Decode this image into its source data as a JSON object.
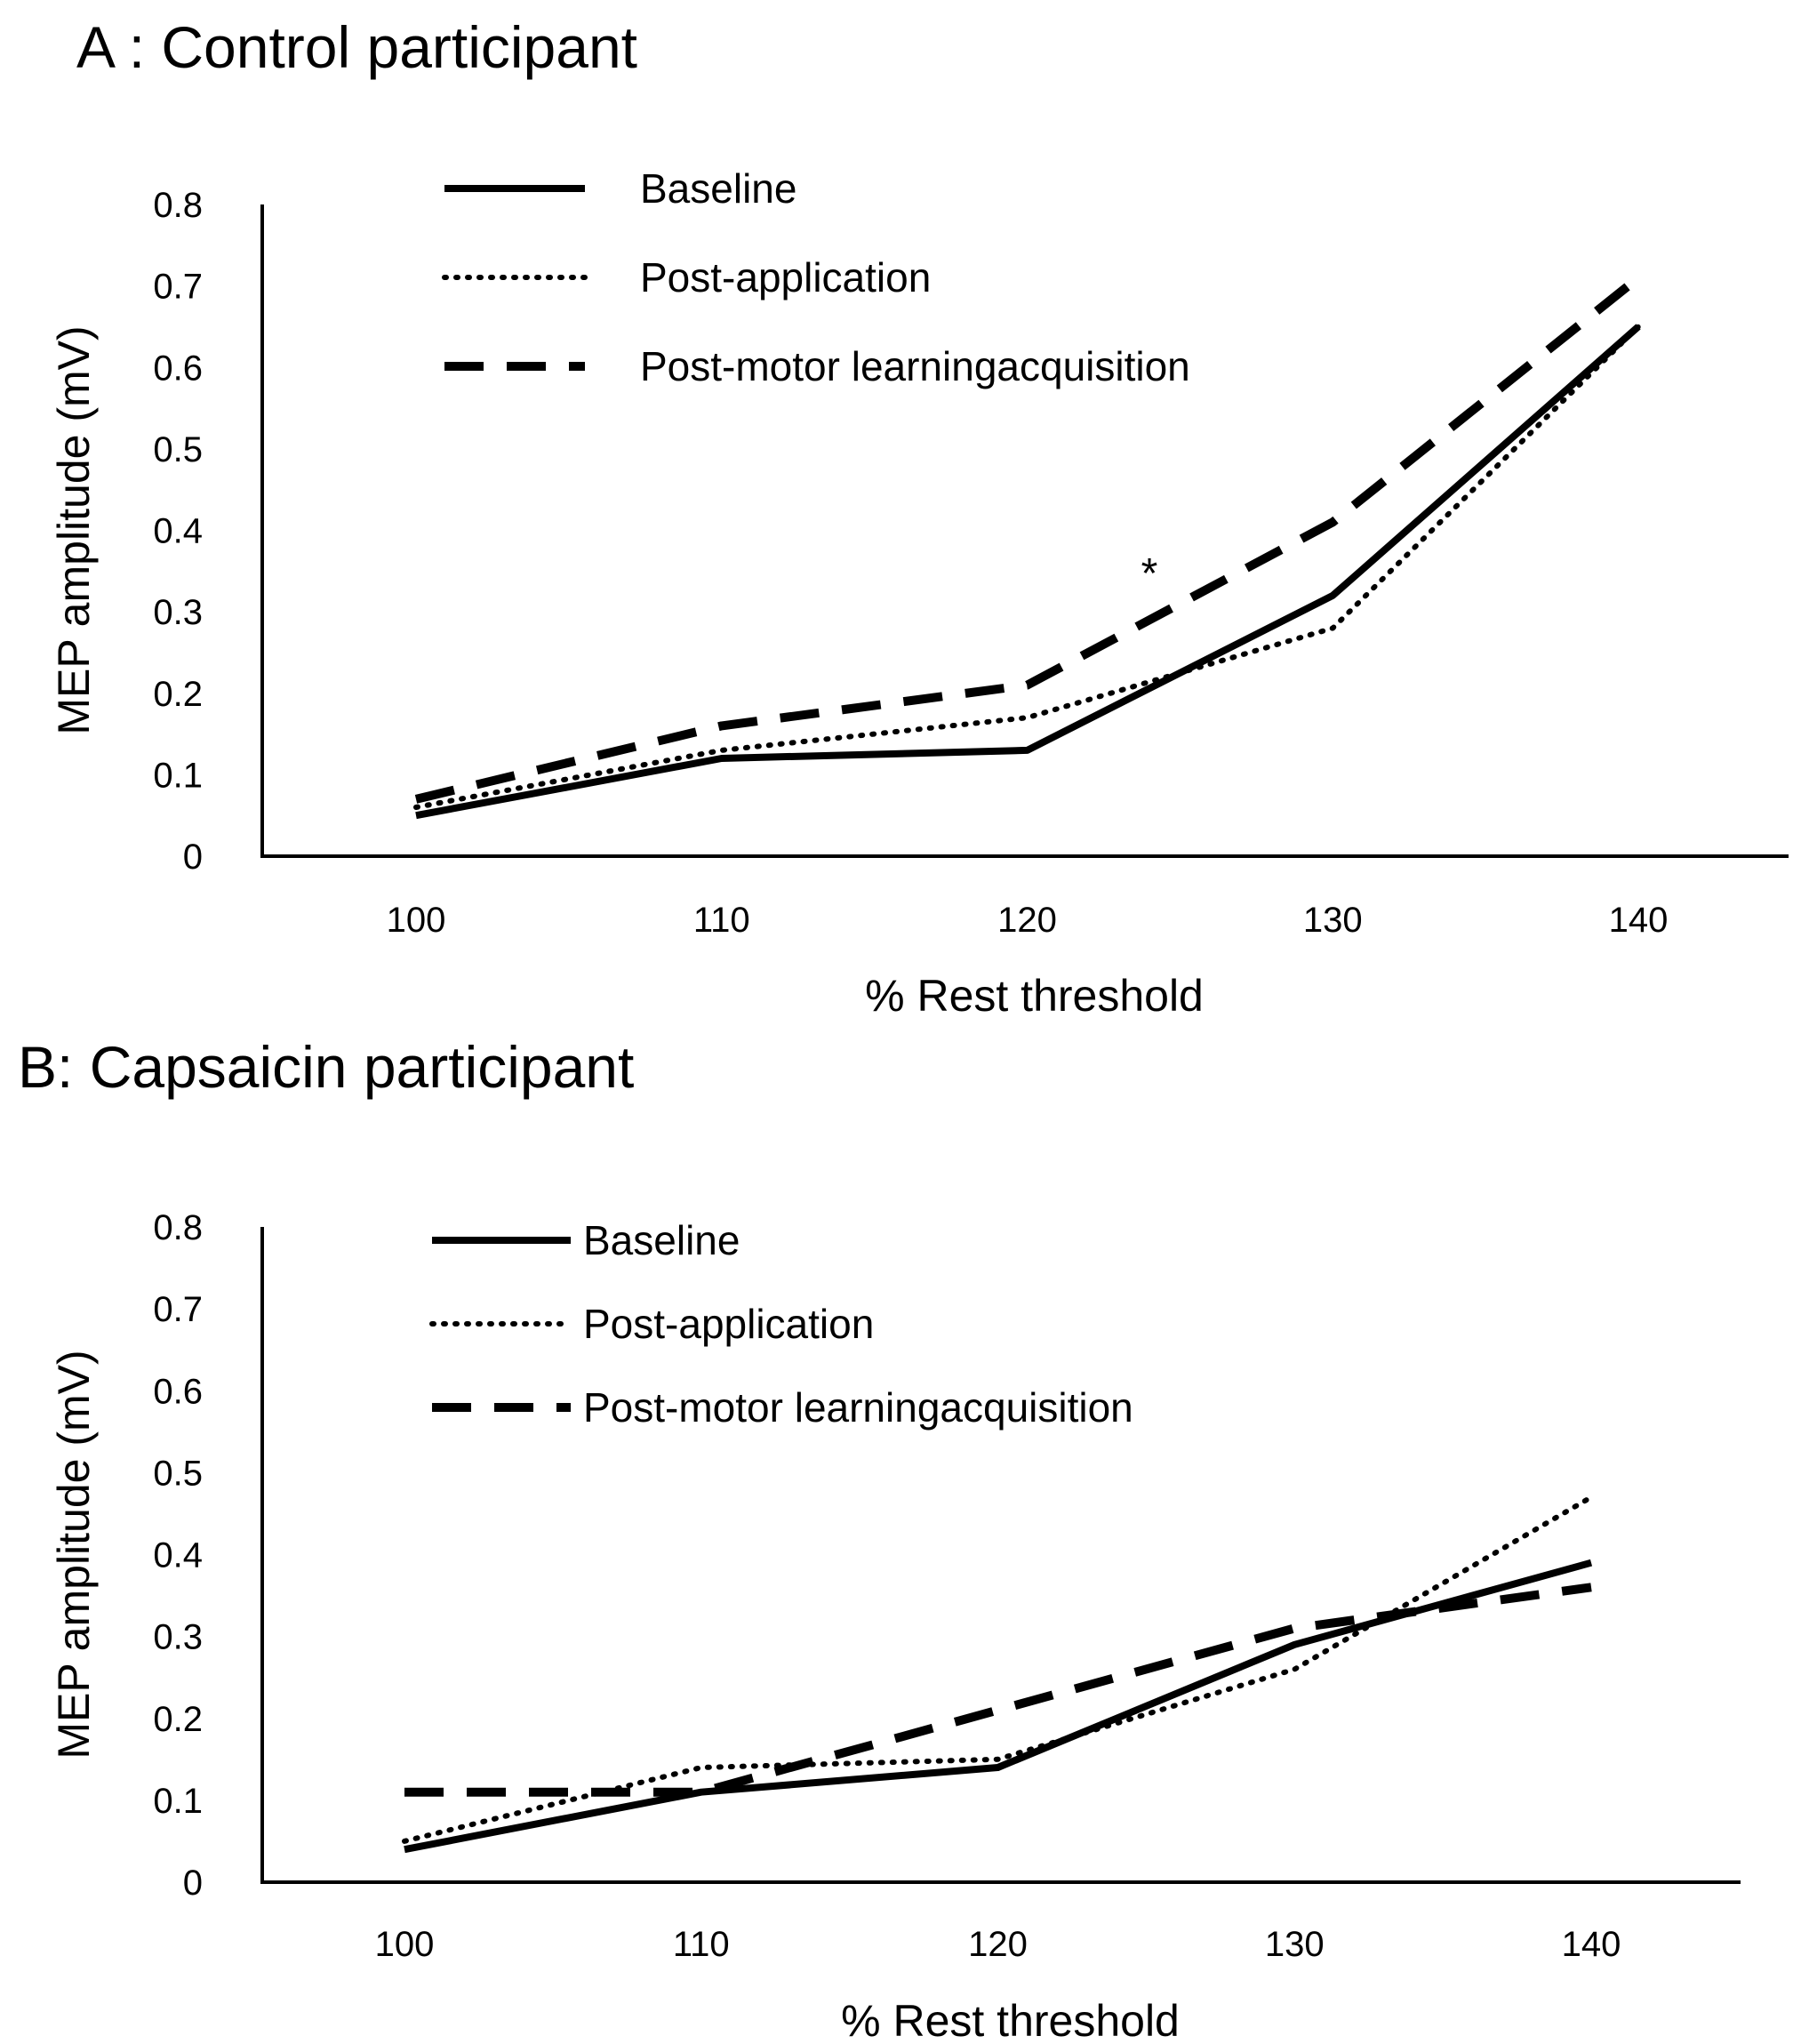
{
  "figure": {
    "panels": [
      {
        "title": "A : Control participant",
        "xlabel": "% Rest threshold",
        "ylabel": "MEP amplitude (mV)",
        "annotation": "*"
      },
      {
        "title": "B: Capsaicin participant",
        "xlabel": "% Rest threshold",
        "ylabel": "MEP amplitude (mV)"
      }
    ]
  },
  "chart_data": [
    {
      "type": "line",
      "title": "A : Control participant",
      "xlabel": "% Rest threshold",
      "ylabel": "MEP amplitude (mV)",
      "ylim": [
        0,
        0.8
      ],
      "x": [
        100,
        110,
        120,
        130,
        140
      ],
      "x_tick_labels": [
        "100",
        "110",
        "120",
        "130",
        "140"
      ],
      "y_ticks": [
        0,
        0.1,
        0.2,
        0.3,
        0.4,
        0.5,
        0.6,
        0.7,
        0.8
      ],
      "y_tick_labels": [
        "0",
        "0.1",
        "0.2",
        "0.3",
        "0.4",
        "0.5",
        "0.6",
        "0.7",
        "0.8"
      ],
      "grid": false,
      "legend_position": "top-left",
      "annotations": [
        {
          "text": "*",
          "x": 124,
          "y": 0.36
        }
      ],
      "series": [
        {
          "name": "Baseline",
          "style": "solid",
          "values": [
            0.05,
            0.12,
            0.13,
            0.32,
            0.65
          ]
        },
        {
          "name": "Post-application",
          "style": "dotted",
          "values": [
            0.06,
            0.13,
            0.17,
            0.28,
            0.65
          ]
        },
        {
          "name": "Post-motor learningacquisition",
          "style": "dashed",
          "values": [
            0.07,
            0.16,
            0.21,
            0.41,
            0.71
          ]
        }
      ]
    },
    {
      "type": "line",
      "title": "B: Capsaicin participant",
      "xlabel": "% Rest threshold",
      "ylabel": "MEP amplitude (mV)",
      "ylim": [
        0,
        0.8
      ],
      "x": [
        100,
        110,
        120,
        130,
        140
      ],
      "x_tick_labels": [
        "100",
        "110",
        "120",
        "130",
        "140"
      ],
      "y_ticks": [
        0,
        0.1,
        0.2,
        0.3,
        0.4,
        0.5,
        0.6,
        0.7,
        0.8
      ],
      "y_tick_labels": [
        "0",
        "0.1",
        "0.2",
        "0.3",
        "0.4",
        "0.5",
        "0.6",
        "0.7",
        "0.8"
      ],
      "grid": false,
      "legend_position": "top-left",
      "series": [
        {
          "name": "Baseline",
          "style": "solid",
          "values": [
            0.04,
            0.11,
            0.14,
            0.29,
            0.39
          ]
        },
        {
          "name": "Post-application",
          "style": "dotted",
          "values": [
            0.05,
            0.14,
            0.15,
            0.26,
            0.47
          ]
        },
        {
          "name": "Post-motor learningacquisition",
          "style": "dashed",
          "values": [
            0.11,
            0.11,
            0.21,
            0.31,
            0.36
          ]
        }
      ]
    }
  ]
}
